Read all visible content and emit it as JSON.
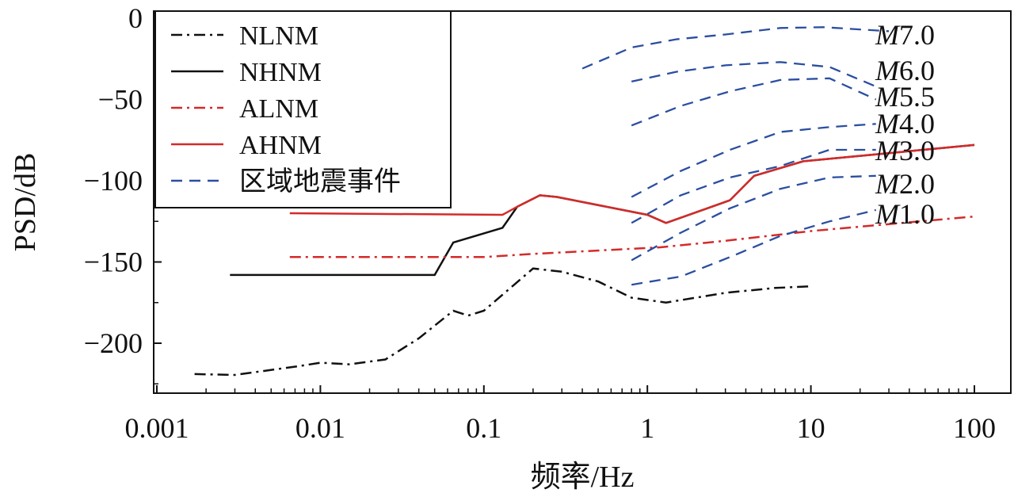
{
  "chart_data": {
    "type": "line",
    "xscale": "log",
    "xlim": [
      0.001,
      100
    ],
    "ylim": [
      -225,
      5
    ],
    "xlabel": "频率/Hz",
    "ylabel": "PSD/dB",
    "x_ticks": [
      0.001,
      0.01,
      0.1,
      1,
      10,
      100
    ],
    "x_tick_labels": [
      "0.001",
      "0.01",
      "0.1",
      "1",
      "10",
      "100"
    ],
    "y_ticks": [
      0,
      -50,
      -100,
      -150,
      -200
    ],
    "y_tick_labels": [
      "0",
      "−50",
      "−100",
      "−150",
      "−200"
    ],
    "legend_position": "top-left",
    "grid": false,
    "legend": [
      {
        "label": "NLNM",
        "color": "#111111",
        "dash": "dashdot"
      },
      {
        "label": "NHNM",
        "color": "#111111",
        "dash": "solid"
      },
      {
        "label": "ALNM",
        "color": "#d42a2a",
        "dash": "dashdot"
      },
      {
        "label": "AHNM",
        "color": "#d42a2a",
        "dash": "solid"
      },
      {
        "label": "区域地震事件",
        "color": "#2b4ea0",
        "dash": "dash"
      }
    ],
    "series": [
      {
        "name": "NLNM",
        "color": "#111111",
        "dash": "dashdot",
        "points": [
          [
            0.0017,
            -219
          ],
          [
            0.003,
            -219.5
          ],
          [
            0.0075,
            -214
          ],
          [
            0.01,
            -212
          ],
          [
            0.015,
            -213
          ],
          [
            0.025,
            -210
          ],
          [
            0.04,
            -197
          ],
          [
            0.065,
            -180
          ],
          [
            0.08,
            -183
          ],
          [
            0.1,
            -180
          ],
          [
            0.2,
            -154
          ],
          [
            0.3,
            -156
          ],
          [
            0.5,
            -162
          ],
          [
            0.8,
            -172
          ],
          [
            1.3,
            -175
          ],
          [
            3,
            -169
          ],
          [
            6,
            -166
          ],
          [
            10,
            -165
          ]
        ]
      },
      {
        "name": "NHNM",
        "color": "#111111",
        "dash": "solid",
        "points": [
          [
            0.0028,
            -158
          ],
          [
            0.05,
            -158
          ],
          [
            0.065,
            -138
          ],
          [
            0.13,
            -129
          ],
          [
            0.16,
            -116
          ],
          [
            0.22,
            -109
          ],
          [
            0.28,
            -110
          ],
          [
            1.0,
            -121
          ],
          [
            1.3,
            -126
          ],
          [
            3.2,
            -112
          ],
          [
            4.5,
            -97
          ],
          [
            9,
            -88
          ],
          [
            100,
            -78
          ]
        ]
      },
      {
        "name": "ALNM",
        "color": "#d42a2a",
        "dash": "dashdot",
        "points": [
          [
            0.0065,
            -147
          ],
          [
            0.1,
            -147
          ],
          [
            0.2,
            -145
          ],
          [
            1.2,
            -141
          ],
          [
            3,
            -137
          ],
          [
            10,
            -131
          ],
          [
            100,
            -122
          ]
        ]
      },
      {
        "name": "AHNM",
        "color": "#d42a2a",
        "dash": "solid",
        "points": [
          [
            0.0065,
            -120
          ],
          [
            0.13,
            -121
          ],
          [
            0.16,
            -116
          ],
          [
            0.22,
            -109
          ],
          [
            0.28,
            -110
          ],
          [
            1.0,
            -121
          ],
          [
            1.3,
            -126
          ],
          [
            3.2,
            -112
          ],
          [
            4.5,
            -97
          ],
          [
            9,
            -88
          ],
          [
            100,
            -78
          ]
        ]
      }
    ],
    "magnitude_curves": [
      {
        "prefix": "M",
        "value": "7.0",
        "points": [
          [
            0.4,
            -31
          ],
          [
            0.8,
            -18
          ],
          [
            1.5,
            -13
          ],
          [
            3,
            -10
          ],
          [
            6.5,
            -6
          ],
          [
            12,
            -5.5
          ],
          [
            30,
            -8
          ]
        ]
      },
      {
        "prefix": "M",
        "value": "6.0",
        "points": [
          [
            0.8,
            -39
          ],
          [
            1.5,
            -33
          ],
          [
            3,
            -29
          ],
          [
            6.5,
            -27
          ],
          [
            13,
            -30
          ],
          [
            25,
            -42
          ]
        ]
      },
      {
        "prefix": "M",
        "value": "5.5",
        "points": [
          [
            0.8,
            -66
          ],
          [
            1.6,
            -54
          ],
          [
            3.2,
            -45
          ],
          [
            6.5,
            -38
          ],
          [
            13,
            -37
          ],
          [
            25,
            -50
          ]
        ]
      },
      {
        "prefix": "M",
        "value": "4.0",
        "points": [
          [
            0.8,
            -110
          ],
          [
            1.6,
            -94
          ],
          [
            3.2,
            -81
          ],
          [
            6.5,
            -70
          ],
          [
            13,
            -67
          ],
          [
            25,
            -65
          ]
        ]
      },
      {
        "prefix": "M",
        "value": "3.0",
        "points": [
          [
            0.8,
            -126
          ],
          [
            1.6,
            -109
          ],
          [
            3.2,
            -98
          ],
          [
            6.5,
            -91
          ],
          [
            13,
            -81
          ],
          [
            25,
            -81
          ]
        ]
      },
      {
        "prefix": "M",
        "value": "2.0",
        "points": [
          [
            0.8,
            -149
          ],
          [
            1.6,
            -132
          ],
          [
            3.2,
            -117
          ],
          [
            6.5,
            -105
          ],
          [
            13,
            -98
          ],
          [
            25,
            -97
          ]
        ]
      },
      {
        "prefix": "M",
        "value": "1.0",
        "points": [
          [
            0.8,
            -164
          ],
          [
            1.6,
            -159
          ],
          [
            3.2,
            -147
          ],
          [
            6.5,
            -134
          ],
          [
            13,
            -125
          ],
          [
            25,
            -118
          ]
        ]
      }
    ]
  }
}
